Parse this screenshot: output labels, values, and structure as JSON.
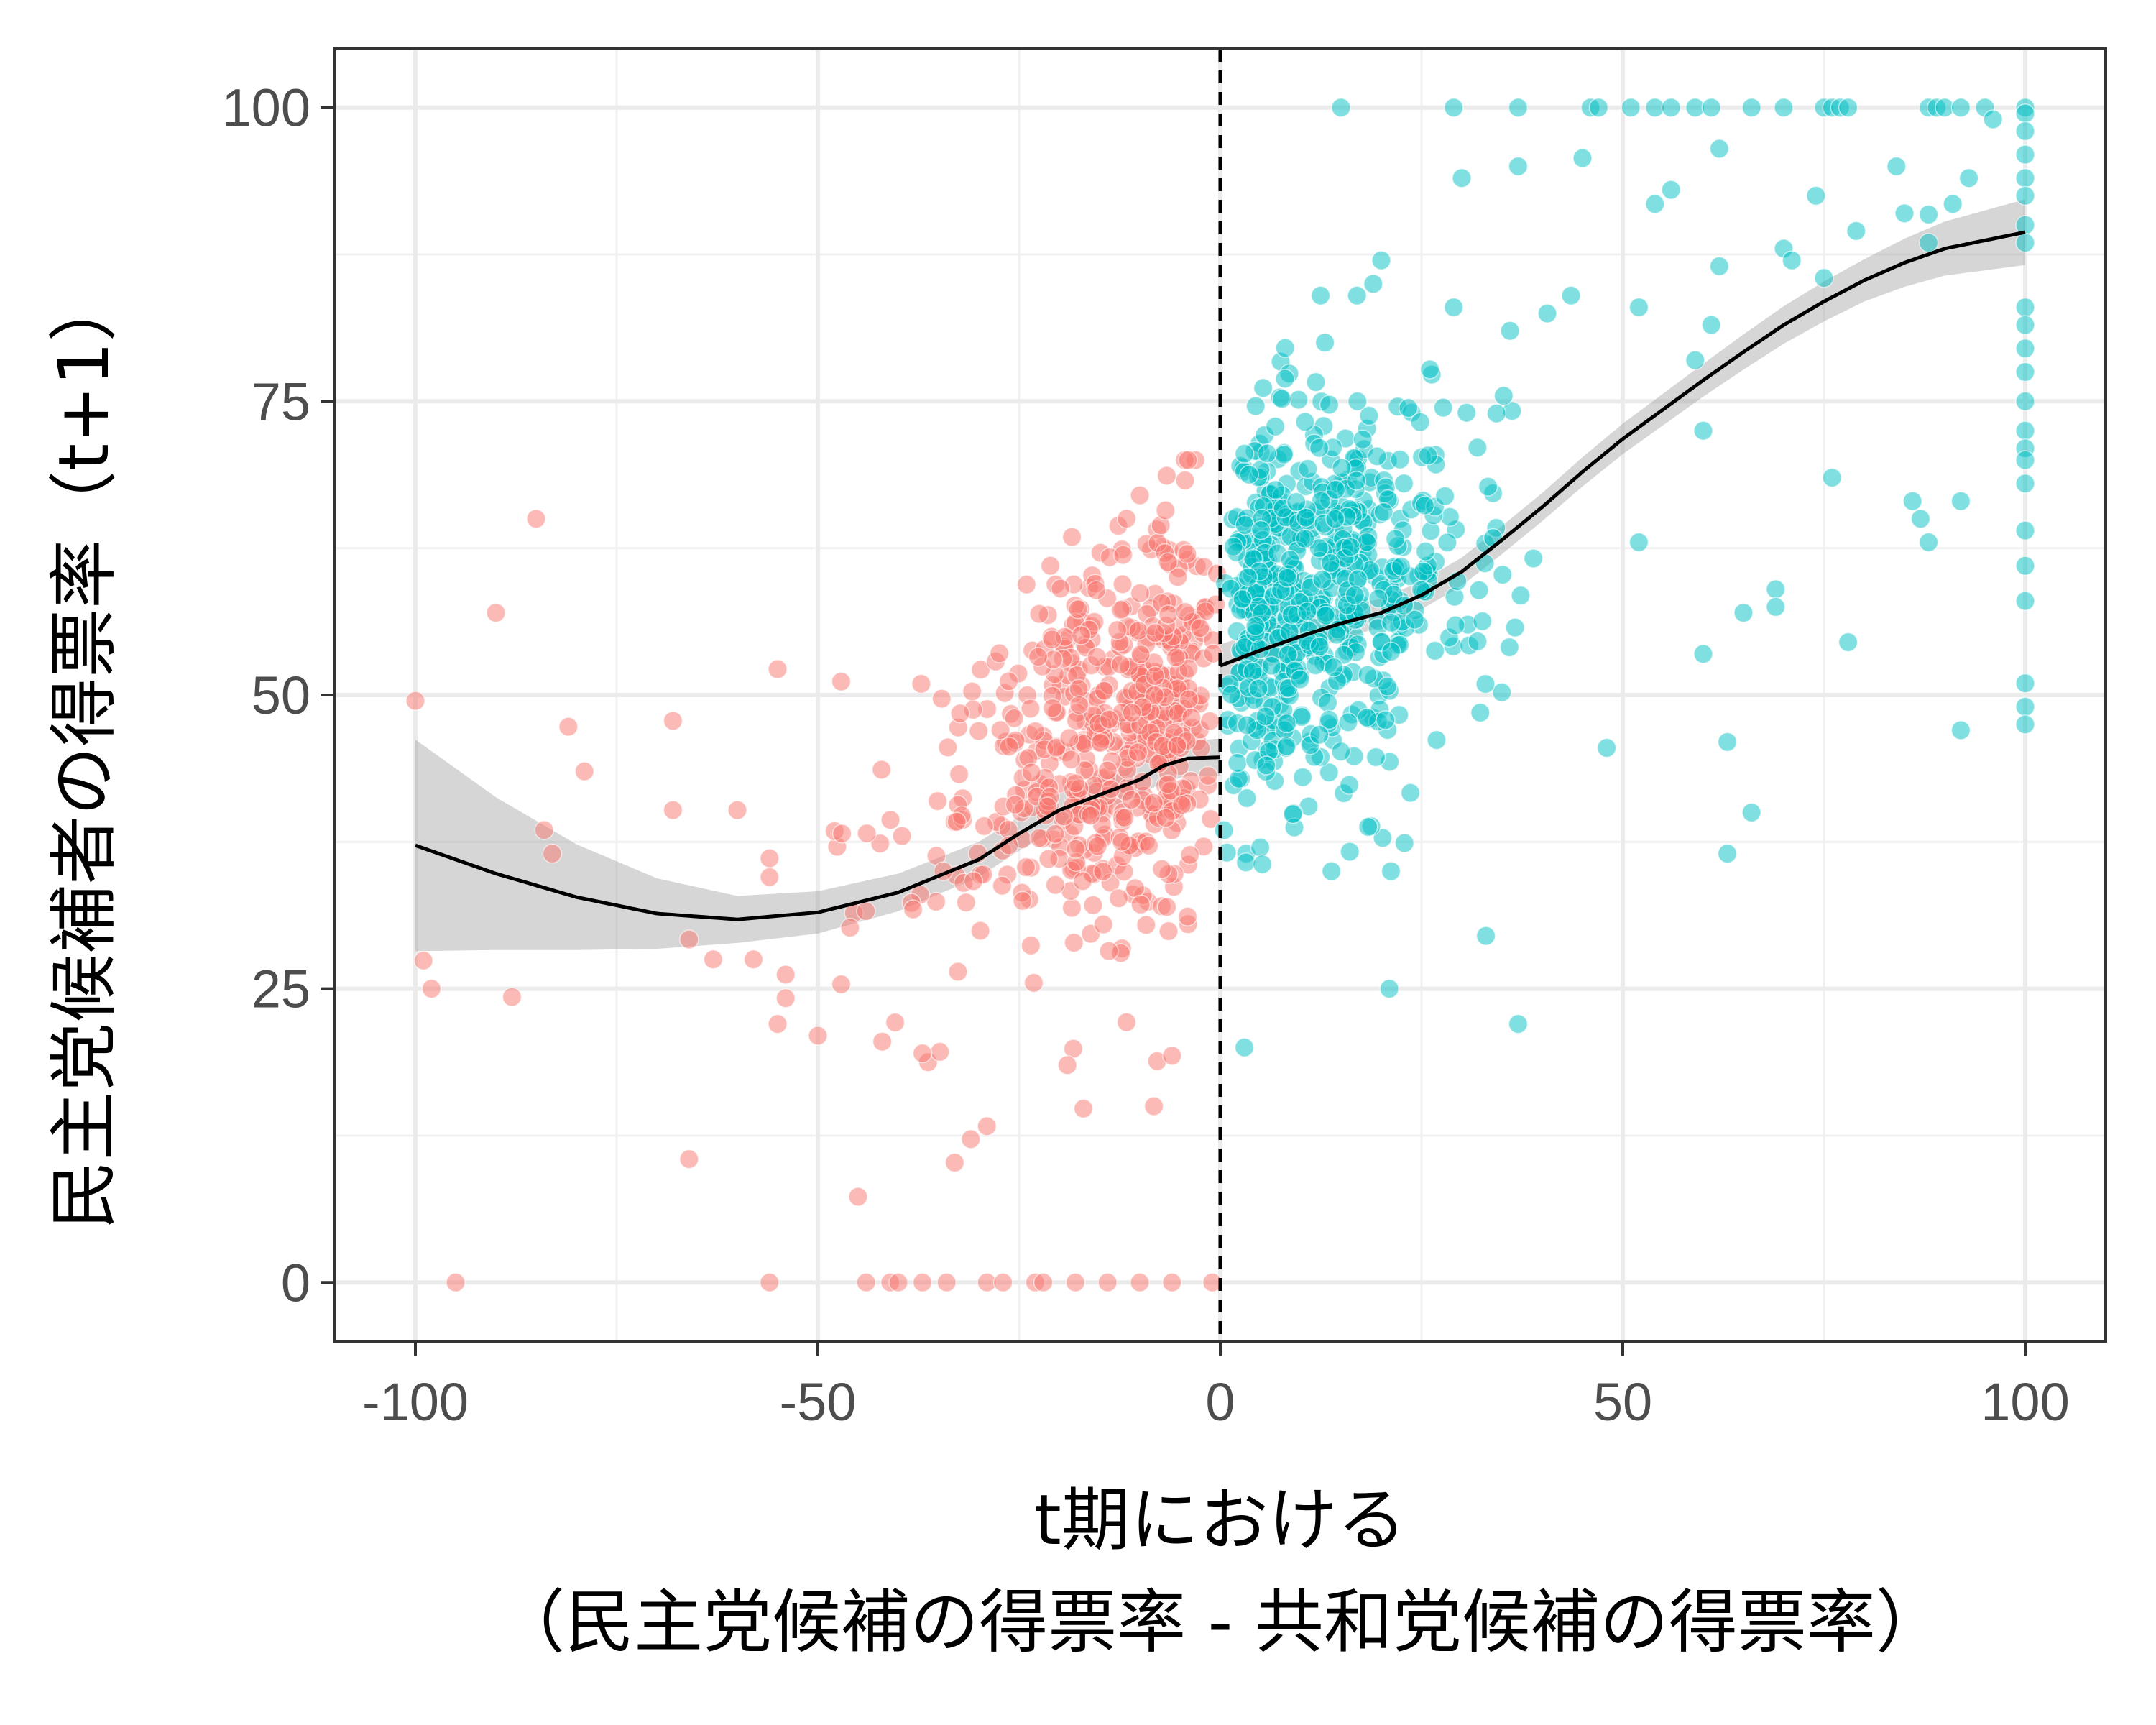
{
  "chart_data": {
    "type": "scatter",
    "title": "",
    "xlabel_lines": [
      "t期における",
      "（民主党候補の得票率 - 共和党候補の得票率）"
    ],
    "ylabel": "民主党候補者の得票率（t+1）",
    "xlim": [
      -110,
      110
    ],
    "ylim": [
      -5,
      105
    ],
    "x_ticks": [
      -100,
      -50,
      0,
      50,
      100
    ],
    "x_tick_labels": [
      "-100",
      "-50",
      "0",
      "50",
      "100"
    ],
    "y_ticks": [
      0,
      25,
      50,
      75,
      100
    ],
    "y_tick_labels": [
      "0",
      "25",
      "50",
      "75",
      "100"
    ],
    "grid": true,
    "cutoff": 0,
    "colors": {
      "left": "#F8766D",
      "right": "#00BFC4",
      "smooth": "#000000",
      "band": "#999999"
    },
    "left_smooth": [
      [
        -100,
        37.2
      ],
      [
        -90,
        34.8
      ],
      [
        -80,
        32.8
      ],
      [
        -70,
        31.4
      ],
      [
        -60,
        30.9
      ],
      [
        -50,
        31.5
      ],
      [
        -40,
        33.2
      ],
      [
        -30,
        36.0
      ],
      [
        -25,
        38.2
      ],
      [
        -20,
        40.2
      ],
      [
        -15,
        41.5
      ],
      [
        -10,
        42.8
      ],
      [
        -7,
        44.0
      ],
      [
        -4,
        44.6
      ],
      [
        0,
        44.7
      ]
    ],
    "left_band_half": [
      [
        -100,
        9.0
      ],
      [
        -90,
        6.5
      ],
      [
        -80,
        4.5
      ],
      [
        -70,
        3.0
      ],
      [
        -60,
        2.0
      ],
      [
        -50,
        1.8
      ],
      [
        -40,
        1.6
      ],
      [
        -30,
        1.5
      ],
      [
        -20,
        1.4
      ],
      [
        -10,
        1.3
      ],
      [
        0,
        1.6
      ]
    ],
    "right_smooth": [
      [
        0,
        52.5
      ],
      [
        5,
        53.8
      ],
      [
        10,
        55.0
      ],
      [
        15,
        56.1
      ],
      [
        20,
        57.0
      ],
      [
        25,
        58.5
      ],
      [
        30,
        60.5
      ],
      [
        35,
        63.2
      ],
      [
        40,
        66.0
      ],
      [
        45,
        69.0
      ],
      [
        50,
        71.8
      ],
      [
        55,
        74.3
      ],
      [
        60,
        76.8
      ],
      [
        65,
        79.2
      ],
      [
        70,
        81.5
      ],
      [
        75,
        83.5
      ],
      [
        80,
        85.3
      ],
      [
        85,
        86.8
      ],
      [
        90,
        88.0
      ],
      [
        100,
        89.4
      ]
    ],
    "right_band_half": [
      [
        0,
        1.8
      ],
      [
        20,
        1.2
      ],
      [
        40,
        1.2
      ],
      [
        60,
        1.4
      ],
      [
        80,
        1.8
      ],
      [
        100,
        2.8
      ]
    ],
    "special_points": {
      "left": [
        [
          -100,
          49.5
        ],
        [
          -99,
          27.4
        ],
        [
          -98,
          25.0
        ],
        [
          -95,
          0
        ],
        [
          -90,
          57
        ],
        [
          -88,
          24.3
        ],
        [
          -85,
          65
        ],
        [
          -84,
          38.5
        ],
        [
          -83,
          36.5
        ],
        [
          -81,
          47.3
        ],
        [
          -79,
          43.5
        ],
        [
          -68,
          47.8
        ],
        [
          -68,
          40.2
        ],
        [
          -66,
          10.5
        ],
        [
          -66,
          29.2
        ],
        [
          -63,
          27.5
        ],
        [
          -60,
          40.2
        ],
        [
          -58,
          27.5
        ],
        [
          -56,
          36.1
        ],
        [
          -56,
          34.5
        ],
        [
          -55,
          52.2
        ],
        [
          -55,
          22
        ],
        [
          -54,
          26.2
        ],
        [
          -54,
          24.2
        ],
        [
          -56,
          0
        ],
        [
          -50,
          21
        ],
        [
          -47,
          38.2
        ],
        [
          -46,
          30.2
        ],
        [
          -45,
          7.3
        ],
        [
          -44,
          0
        ],
        [
          -41,
          0
        ],
        [
          -40,
          0
        ],
        [
          -37,
          0
        ],
        [
          -34,
          0
        ],
        [
          -29,
          0
        ],
        [
          -27,
          0
        ],
        [
          -23,
          0
        ],
        [
          -22,
          0
        ],
        [
          -18,
          0
        ],
        [
          -14,
          0
        ],
        [
          -10,
          0
        ],
        [
          -6,
          0
        ],
        [
          -1,
          0
        ],
        [
          -33,
          10.2
        ],
        [
          -31,
          12.2
        ],
        [
          -29,
          13.3
        ],
        [
          -17,
          14.8
        ],
        [
          -19,
          18.5
        ],
        [
          -37,
          19.5
        ],
        [
          -6,
          19.3
        ],
        [
          -42,
          20.5
        ]
      ],
      "right": [
        [
          15,
          100
        ],
        [
          29,
          100
        ],
        [
          37,
          100
        ],
        [
          46,
          100
        ],
        [
          47,
          100
        ],
        [
          51,
          100
        ],
        [
          54,
          100
        ],
        [
          56,
          100
        ],
        [
          59,
          100
        ],
        [
          61,
          100
        ],
        [
          66,
          100
        ],
        [
          70,
          100
        ],
        [
          75,
          100
        ],
        [
          76,
          100
        ],
        [
          77,
          100
        ],
        [
          78,
          100
        ],
        [
          88,
          100
        ],
        [
          89,
          100
        ],
        [
          90,
          100
        ],
        [
          92,
          100
        ],
        [
          95,
          100
        ],
        [
          30,
          94
        ],
        [
          37,
          95
        ],
        [
          45,
          95.7
        ],
        [
          56,
          93
        ],
        [
          54,
          91.8
        ],
        [
          62,
          96.5
        ],
        [
          74,
          92.5
        ],
        [
          79,
          89.5
        ],
        [
          84,
          95
        ],
        [
          85,
          91
        ],
        [
          88,
          90.9
        ],
        [
          88,
          88.5
        ],
        [
          91,
          91.8
        ],
        [
          93,
          94
        ],
        [
          96,
          99
        ],
        [
          70,
          88
        ],
        [
          71,
          87
        ],
        [
          75,
          85.5
        ],
        [
          61,
          81.5
        ],
        [
          59,
          78.5
        ],
        [
          52,
          83
        ],
        [
          36,
          81
        ],
        [
          29,
          83
        ],
        [
          13,
          80
        ],
        [
          19,
          85
        ],
        [
          20,
          87
        ],
        [
          3,
          20
        ],
        [
          21,
          25
        ],
        [
          33,
          29.5
        ],
        [
          37,
          22
        ],
        [
          66,
          40
        ],
        [
          63,
          36.5
        ],
        [
          92,
          47
        ],
        [
          88,
          63
        ],
        [
          87,
          65
        ],
        [
          86,
          66.5
        ],
        [
          92,
          66.5
        ],
        [
          78,
          54.5
        ],
        [
          76,
          68.5
        ],
        [
          69,
          59
        ],
        [
          69,
          57.5
        ],
        [
          60,
          53.5
        ],
        [
          65,
          57
        ],
        [
          63,
          46
        ],
        [
          48,
          45.5
        ],
        [
          60,
          72.5
        ],
        [
          62,
          86.5
        ],
        [
          52,
          63
        ]
      ],
      "right_edge_y": [
        100,
        99.5,
        98,
        96,
        94,
        92.5,
        90,
        88.5,
        83,
        81.5,
        79.5,
        77.5,
        75,
        72.5,
        71,
        70,
        68,
        64,
        61,
        58,
        51,
        49,
        47.5
      ]
    },
    "random_clouds": {
      "left_count": 560,
      "right_count": 640
    }
  }
}
